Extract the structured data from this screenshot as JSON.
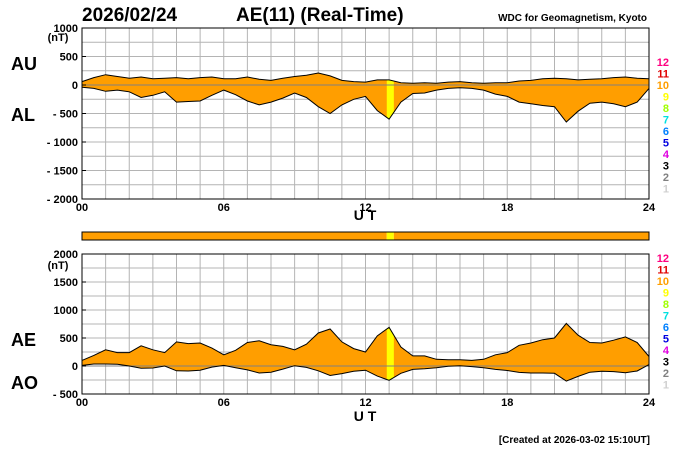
{
  "header": {
    "date": "2026/02/24",
    "title": "AE(11) (Real-Time)",
    "source": "WDC for Geomagnetism, Kyoto"
  },
  "footer": {
    "created": "[Created at 2026-03-02 15:10UT]"
  },
  "colors": {
    "fill": "#ff9e00",
    "highlight": "#ffff00",
    "line": "#000000",
    "grid": "#b4b4b4"
  },
  "levels": [
    {
      "label": "12",
      "color": "#ff0080"
    },
    {
      "label": "11",
      "color": "#e00000"
    },
    {
      "label": "10",
      "color": "#ff9e00"
    },
    {
      "label": "9",
      "color": "#ffff00"
    },
    {
      "label": "8",
      "color": "#a0ff00"
    },
    {
      "label": "7",
      "color": "#00e0e0"
    },
    {
      "label": "6",
      "color": "#0080ff"
    },
    {
      "label": "5",
      "color": "#0000e0"
    },
    {
      "label": "4",
      "color": "#e000e0"
    },
    {
      "label": "3",
      "color": "#000000"
    },
    {
      "label": "2",
      "color": "#808080"
    },
    {
      "label": "1",
      "color": "#d0d0d0"
    }
  ],
  "status_bar": {
    "segments": [
      {
        "from": 0,
        "to": 12.9,
        "level": "10"
      },
      {
        "from": 12.9,
        "to": 13.2,
        "level": "9"
      },
      {
        "from": 13.2,
        "to": 24,
        "level": "10"
      }
    ]
  },
  "chart_data": [
    {
      "type": "area",
      "name": "AU/AL",
      "panel_labels": {
        "upper": "AU",
        "lower": "AL"
      },
      "xlabel": "U T",
      "ylabel_unit": "(nT)",
      "xlim": [
        0,
        24
      ],
      "ylim": [
        -2000,
        1000
      ],
      "xticks": [
        "00",
        "06",
        "12",
        "18",
        "24"
      ],
      "xtick_values": [
        0,
        6,
        12,
        18,
        24
      ],
      "yticks": [
        "1000",
        "500",
        "0",
        "- 500",
        "- 1000",
        "- 1500",
        "- 2000"
      ],
      "ytick_values": [
        1000,
        500,
        0,
        -500,
        -1000,
        -1500,
        -2000
      ],
      "highlight_range": [
        12.9,
        13.2
      ],
      "x": [
        0,
        0.5,
        1,
        1.5,
        2,
        2.5,
        3,
        3.5,
        4,
        4.5,
        5,
        5.5,
        6,
        6.5,
        7,
        7.5,
        8,
        8.5,
        9,
        9.5,
        10,
        10.5,
        11,
        11.5,
        12,
        12.5,
        13,
        13.5,
        14,
        14.5,
        15,
        15.5,
        16,
        16.5,
        17,
        17.5,
        18,
        18.5,
        19,
        19.5,
        20,
        20.5,
        21,
        21.5,
        22,
        22.5,
        23,
        23.5,
        24
      ],
      "series": [
        {
          "name": "AU",
          "values": [
            60,
            130,
            180,
            150,
            120,
            140,
            110,
            120,
            130,
            110,
            130,
            140,
            110,
            110,
            140,
            100,
            80,
            120,
            150,
            170,
            210,
            160,
            80,
            60,
            50,
            90,
            90,
            40,
            30,
            40,
            30,
            50,
            60,
            40,
            30,
            40,
            40,
            70,
            80,
            110,
            120,
            110,
            90,
            100,
            110,
            130,
            140,
            120,
            110
          ]
        },
        {
          "name": "AL",
          "values": [
            -40,
            -60,
            -110,
            -90,
            -120,
            -220,
            -180,
            -120,
            -300,
            -290,
            -280,
            -180,
            -90,
            -170,
            -280,
            -350,
            -300,
            -230,
            -140,
            -220,
            -380,
            -500,
            -350,
            -250,
            -200,
            -450,
            -600,
            -300,
            -150,
            -140,
            -90,
            -60,
            -50,
            -60,
            -90,
            -160,
            -200,
            -300,
            -330,
            -360,
            -380,
            -650,
            -460,
            -320,
            -300,
            -330,
            -380,
            -300,
            -60
          ]
        }
      ]
    },
    {
      "type": "area",
      "name": "AE/AO",
      "panel_labels": {
        "upper": "AE",
        "lower": "AO"
      },
      "xlabel": "U T",
      "ylabel_unit": "(nT)",
      "xlim": [
        0,
        24
      ],
      "ylim": [
        -500,
        2000
      ],
      "xticks": [
        "00",
        "06",
        "12",
        "18",
        "24"
      ],
      "xtick_values": [
        0,
        6,
        12,
        18,
        24
      ],
      "yticks": [
        "2000",
        "1500",
        "1000",
        "500",
        "0",
        "- 500"
      ],
      "ytick_values": [
        2000,
        1500,
        1000,
        500,
        0,
        -500
      ],
      "highlight_range": [
        12.9,
        13.2
      ],
      "x": [
        0,
        0.5,
        1,
        1.5,
        2,
        2.5,
        3,
        3.5,
        4,
        4.5,
        5,
        5.5,
        6,
        6.5,
        7,
        7.5,
        8,
        8.5,
        9,
        9.5,
        10,
        10.5,
        11,
        11.5,
        12,
        12.5,
        13,
        13.5,
        14,
        14.5,
        15,
        15.5,
        16,
        16.5,
        17,
        17.5,
        18,
        18.5,
        19,
        19.5,
        20,
        20.5,
        21,
        21.5,
        22,
        22.5,
        23,
        23.5,
        24
      ],
      "series": [
        {
          "name": "AE",
          "values": [
            100,
            190,
            290,
            240,
            240,
            360,
            290,
            240,
            430,
            400,
            410,
            320,
            200,
            280,
            420,
            450,
            380,
            350,
            290,
            390,
            590,
            660,
            430,
            310,
            250,
            540,
            690,
            340,
            180,
            180,
            120,
            110,
            110,
            100,
            120,
            200,
            240,
            370,
            410,
            470,
            500,
            760,
            550,
            420,
            410,
            460,
            520,
            420,
            170
          ]
        },
        {
          "name": "AO",
          "values": [
            10,
            35,
            35,
            30,
            0,
            -40,
            -35,
            0,
            -85,
            -90,
            -75,
            -20,
            10,
            -30,
            -70,
            -125,
            -110,
            -55,
            5,
            -25,
            -85,
            -170,
            -135,
            -95,
            -75,
            -180,
            -255,
            -130,
            -60,
            -50,
            -30,
            -5,
            5,
            -10,
            -30,
            -60,
            -80,
            -115,
            -125,
            -125,
            -130,
            -270,
            -185,
            -110,
            -95,
            -100,
            -120,
            -90,
            25
          ]
        }
      ]
    }
  ]
}
